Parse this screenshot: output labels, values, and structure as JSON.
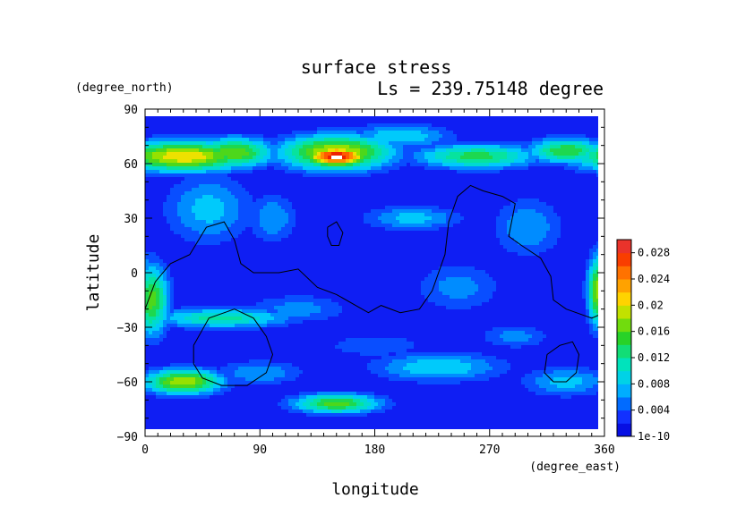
{
  "chart_data": {
    "type": "heatmap",
    "title": "surface stress",
    "subtitle": "Ls = 239.75148 degree",
    "xlabel": "longitude",
    "ylabel": "latitude",
    "x_unit": "(degree_east)",
    "y_unit": "(degree_north)",
    "xlim": [
      0,
      360
    ],
    "ylim": [
      -90,
      90
    ],
    "x_ticks": [
      "0",
      "90",
      "180",
      "270",
      "360"
    ],
    "y_ticks": [
      "90",
      "60",
      "30",
      "0",
      "−30",
      "−60",
      "−90"
    ],
    "colorbar": {
      "min": 1e-10,
      "max": 0.03,
      "tick_labels": [
        "1e-10",
        "0.004",
        "0.008",
        "0.012",
        "0.016",
        "0.02",
        "0.024",
        "0.028"
      ]
    },
    "background_value": 0.002,
    "features": [
      {
        "lon": 150,
        "lat": 64,
        "slon": 18,
        "slat": 4,
        "value": 0.03
      },
      {
        "lon": 150,
        "lat": 66,
        "slon": 32,
        "slat": 7,
        "value": 0.02
      },
      {
        "lon": 30,
        "lat": 64,
        "slon": 38,
        "slat": 6,
        "value": 0.021
      },
      {
        "lon": 70,
        "lat": 66,
        "slon": 22,
        "slat": 6,
        "value": 0.017
      },
      {
        "lon": 260,
        "lat": 64,
        "slon": 35,
        "slat": 5,
        "value": 0.014
      },
      {
        "lon": 330,
        "lat": 67,
        "slon": 22,
        "slat": 5,
        "value": 0.015
      },
      {
        "lon": 200,
        "lat": 75,
        "slon": 30,
        "slat": 5,
        "value": 0.009
      },
      {
        "lon": 5,
        "lat": -15,
        "slon": 10,
        "slat": 14,
        "value": 0.016
      },
      {
        "lon": 355,
        "lat": -10,
        "slon": 6,
        "slat": 14,
        "value": 0.018
      },
      {
        "lon": 60,
        "lat": -25,
        "slon": 40,
        "slat": 4,
        "value": 0.012
      },
      {
        "lon": 30,
        "lat": -60,
        "slon": 22,
        "slat": 5,
        "value": 0.019
      },
      {
        "lon": 150,
        "lat": -72,
        "slon": 25,
        "slat": 4,
        "value": 0.016
      },
      {
        "lon": 230,
        "lat": -52,
        "slon": 38,
        "slat": 6,
        "value": 0.009
      },
      {
        "lon": 330,
        "lat": -60,
        "slon": 25,
        "slat": 6,
        "value": 0.008
      },
      {
        "lon": 210,
        "lat": 30,
        "slon": 28,
        "slat": 5,
        "value": 0.008
      },
      {
        "lon": 50,
        "lat": 35,
        "slon": 25,
        "slat": 14,
        "value": 0.008
      },
      {
        "lon": 100,
        "lat": 30,
        "slon": 14,
        "slat": 10,
        "value": 0.007
      },
      {
        "lon": 300,
        "lat": 25,
        "slon": 20,
        "slat": 12,
        "value": 0.007
      },
      {
        "lon": 245,
        "lat": -8,
        "slon": 25,
        "slat": 10,
        "value": 0.006
      },
      {
        "lon": 120,
        "lat": -20,
        "slon": 30,
        "slat": 6,
        "value": 0.006
      },
      {
        "lon": 180,
        "lat": -40,
        "slon": 30,
        "slat": 5,
        "value": 0.005
      },
      {
        "lon": 90,
        "lat": -55,
        "slon": 25,
        "slat": 5,
        "value": 0.007
      },
      {
        "lon": 290,
        "lat": -35,
        "slon": 20,
        "slat": 5,
        "value": 0.006
      }
    ],
    "contours": [
      [
        [
          0,
          -20
        ],
        [
          8,
          -5
        ],
        [
          20,
          5
        ],
        [
          35,
          10
        ],
        [
          48,
          25
        ],
        [
          62,
          28
        ],
        [
          70,
          18
        ],
        [
          75,
          5
        ],
        [
          85,
          0
        ],
        [
          105,
          0
        ],
        [
          120,
          2
        ],
        [
          135,
          -8
        ],
        [
          150,
          -12
        ],
        [
          165,
          -18
        ],
        [
          175,
          -22
        ],
        [
          185,
          -18
        ],
        [
          200,
          -22
        ],
        [
          215,
          -20
        ],
        [
          225,
          -10
        ],
        [
          235,
          10
        ],
        [
          238,
          28
        ],
        [
          245,
          42
        ],
        [
          255,
          48
        ],
        [
          265,
          45
        ],
        [
          280,
          42
        ],
        [
          290,
          38
        ],
        [
          285,
          20
        ],
        [
          295,
          15
        ],
        [
          310,
          8
        ],
        [
          318,
          -2
        ],
        [
          320,
          -15
        ],
        [
          330,
          -20
        ],
        [
          350,
          -25
        ],
        [
          360,
          -22
        ]
      ],
      [
        [
          38,
          -40
        ],
        [
          50,
          -25
        ],
        [
          70,
          -20
        ],
        [
          85,
          -25
        ],
        [
          95,
          -35
        ],
        [
          100,
          -45
        ],
        [
          95,
          -55
        ],
        [
          80,
          -62
        ],
        [
          60,
          -62
        ],
        [
          45,
          -58
        ],
        [
          38,
          -50
        ],
        [
          38,
          -40
        ]
      ],
      [
        [
          315,
          -45
        ],
        [
          325,
          -40
        ],
        [
          335,
          -38
        ],
        [
          340,
          -45
        ],
        [
          338,
          -55
        ],
        [
          330,
          -60
        ],
        [
          320,
          -60
        ],
        [
          313,
          -55
        ],
        [
          315,
          -45
        ]
      ],
      [
        [
          143,
          25
        ],
        [
          150,
          28
        ],
        [
          155,
          22
        ],
        [
          152,
          15
        ],
        [
          146,
          15
        ],
        [
          143,
          20
        ],
        [
          143,
          25
        ]
      ]
    ],
    "grid": false,
    "legend": "colorbar-right"
  }
}
